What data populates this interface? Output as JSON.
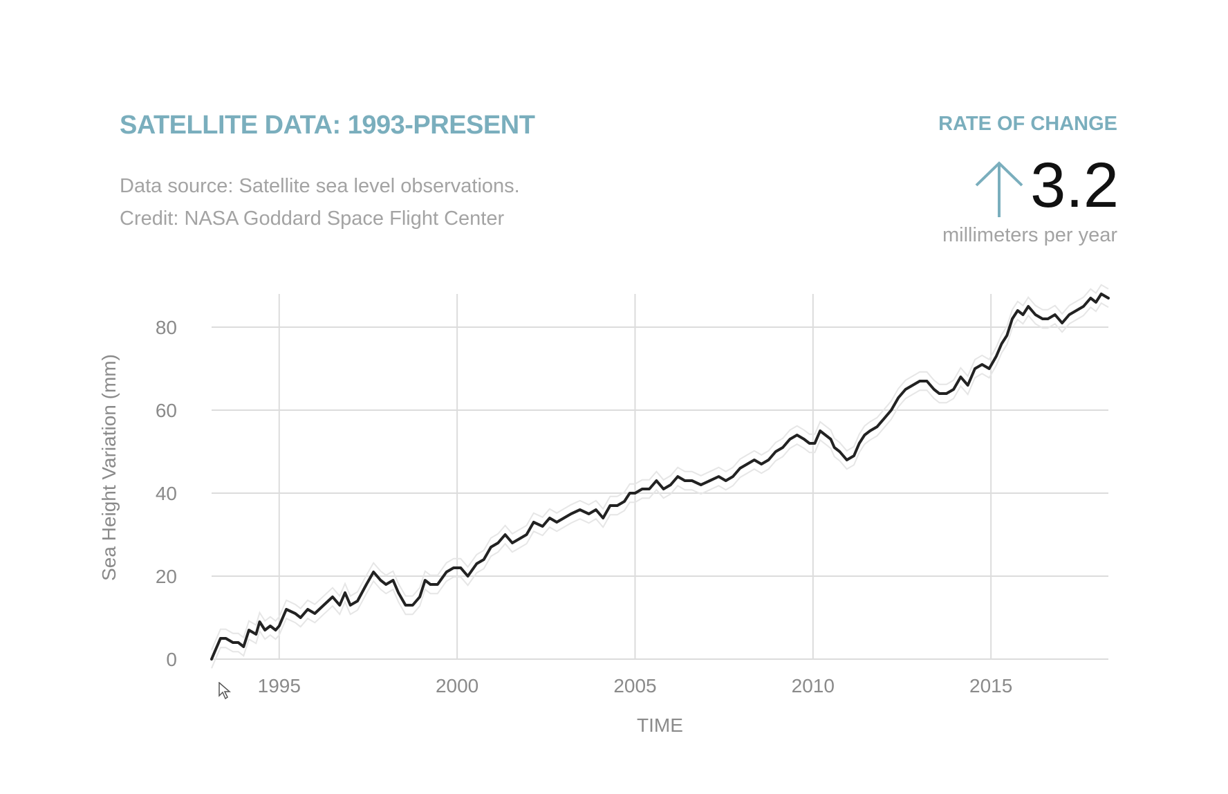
{
  "colors": {
    "accent": "#7aaebd",
    "line": "#222222",
    "grid": "#dcdcdc",
    "muted": "#a3a3a3"
  },
  "header": {
    "title": "SATELLITE DATA: 1993-PRESENT",
    "source_line": "Data source: Satellite sea level observations.",
    "credit_line": "Credit: NASA Goddard Space Flight Center"
  },
  "rate": {
    "label": "RATE OF CHANGE",
    "icon": "arrow-up-icon",
    "value": "3.2",
    "unit": "millimeters per year"
  },
  "chart_data": {
    "type": "line",
    "title": "SATELLITE DATA: 1993-PRESENT",
    "xlabel": "TIME",
    "ylabel": "Sea Height Variation (mm)",
    "xlim": [
      1993.1,
      2018.3
    ],
    "ylim": [
      0,
      88
    ],
    "grid": true,
    "x_ticks": [
      1995,
      2000,
      2005,
      2010,
      2015
    ],
    "y_ticks": [
      0,
      20,
      40,
      60,
      80
    ],
    "series": [
      {
        "name": "Sea Height Variation",
        "x": [
          1993.1,
          1993.2,
          1993.35,
          1993.5,
          1993.7,
          1993.85,
          1994.0,
          1994.15,
          1994.35,
          1994.45,
          1994.6,
          1994.75,
          1994.9,
          1995.0,
          1995.2,
          1995.45,
          1995.6,
          1995.8,
          1996.0,
          1996.25,
          1996.5,
          1996.7,
          1996.85,
          1997.0,
          1997.2,
          1997.45,
          1997.65,
          1997.85,
          1998.0,
          1998.2,
          1998.35,
          1998.55,
          1998.75,
          1998.95,
          1999.1,
          1999.25,
          1999.45,
          1999.7,
          1999.9,
          2000.1,
          2000.3,
          2000.55,
          2000.75,
          2000.95,
          2001.15,
          2001.35,
          2001.55,
          2001.75,
          2001.95,
          2002.15,
          2002.4,
          2002.6,
          2002.8,
          2003.0,
          2003.2,
          2003.45,
          2003.7,
          2003.9,
          2004.1,
          2004.3,
          2004.5,
          2004.7,
          2004.85,
          2005.0,
          2005.2,
          2005.4,
          2005.6,
          2005.8,
          2006.0,
          2006.2,
          2006.4,
          2006.6,
          2006.85,
          2007.1,
          2007.35,
          2007.55,
          2007.75,
          2007.95,
          2008.15,
          2008.35,
          2008.55,
          2008.75,
          2008.95,
          2009.15,
          2009.35,
          2009.55,
          2009.75,
          2009.9,
          2010.05,
          2010.2,
          2010.35,
          2010.5,
          2010.6,
          2010.75,
          2010.95,
          2011.15,
          2011.3,
          2011.45,
          2011.6,
          2011.8,
          2012.0,
          2012.2,
          2012.4,
          2012.6,
          2012.8,
          2013.0,
          2013.2,
          2013.4,
          2013.55,
          2013.75,
          2013.95,
          2014.15,
          2014.35,
          2014.55,
          2014.75,
          2014.95,
          2015.15,
          2015.3,
          2015.45,
          2015.6,
          2015.75,
          2015.9,
          2016.05,
          2016.25,
          2016.45,
          2016.6,
          2016.8,
          2017.0,
          2017.2,
          2017.4,
          2017.6,
          2017.8,
          2017.95,
          2018.1,
          2018.3
        ],
        "values": [
          0,
          2,
          5,
          5,
          4,
          4,
          3,
          7,
          6,
          9,
          7,
          8,
          7,
          8,
          12,
          11,
          10,
          12,
          11,
          13,
          15,
          13,
          16,
          13,
          14,
          18,
          21,
          19,
          18,
          19,
          16,
          13,
          13,
          15,
          19,
          18,
          18,
          21,
          22,
          22,
          20,
          23,
          24,
          27,
          28,
          30,
          28,
          29,
          30,
          33,
          32,
          34,
          33,
          34,
          35,
          36,
          35,
          36,
          34,
          37,
          37,
          38,
          40,
          40,
          41,
          41,
          43,
          41,
          42,
          44,
          43,
          43,
          42,
          43,
          44,
          43,
          44,
          46,
          47,
          48,
          47,
          48,
          50,
          51,
          53,
          54,
          53,
          52,
          52,
          55,
          54,
          53,
          51,
          50,
          48,
          49,
          52,
          54,
          55,
          56,
          58,
          60,
          63,
          65,
          66,
          67,
          67,
          65,
          64,
          64,
          65,
          68,
          66,
          70,
          71,
          70,
          73,
          76,
          78,
          82,
          84,
          83,
          85,
          83,
          82,
          82,
          83,
          81,
          83,
          84,
          85,
          87,
          86,
          88,
          87
        ]
      }
    ]
  }
}
